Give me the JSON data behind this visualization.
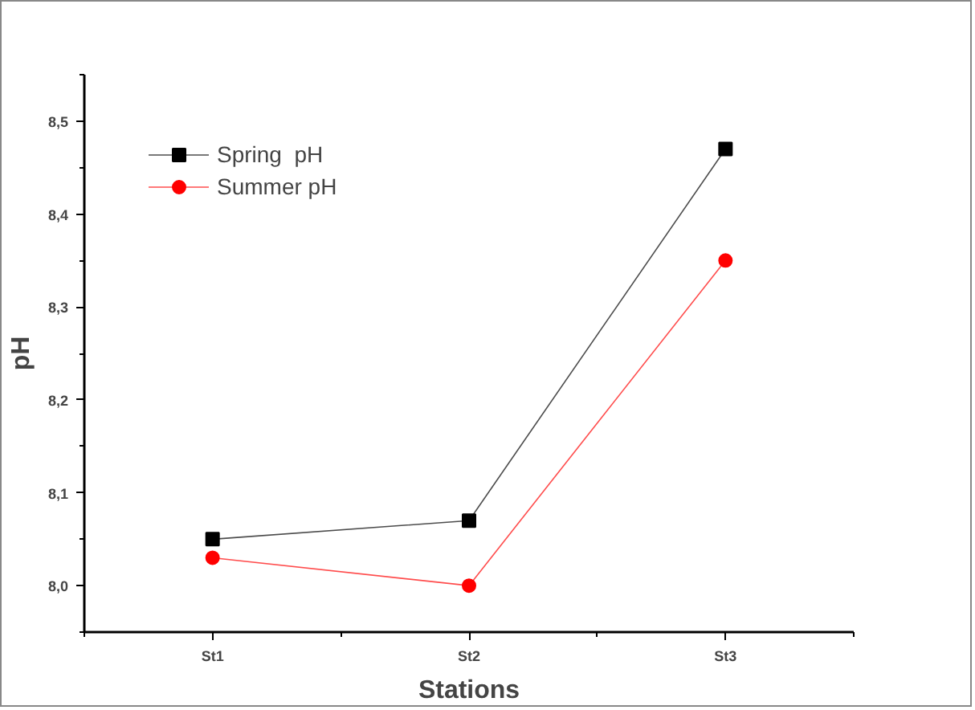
{
  "chart_data": {
    "type": "line",
    "xlabel": "Stations",
    "ylabel": "pH",
    "categories": [
      "St1",
      "St2",
      "St3"
    ],
    "series": [
      {
        "name": "Spring  pH",
        "color": "#000000",
        "marker": "square",
        "values": [
          8.05,
          8.07,
          8.47
        ]
      },
      {
        "name": "Summer pH",
        "color": "#ff0000",
        "marker": "circle",
        "values": [
          8.03,
          8.0,
          8.35
        ]
      }
    ],
    "ylim": [
      7.95,
      8.55
    ],
    "yticks": [
      {
        "value": 8.0,
        "label": "8,0"
      },
      {
        "value": 8.1,
        "label": "8,1"
      },
      {
        "value": 8.2,
        "label": "8,2"
      },
      {
        "value": 8.3,
        "label": "8,3"
      },
      {
        "value": 8.4,
        "label": "8,4"
      },
      {
        "value": 8.5,
        "label": "8,5"
      }
    ],
    "grid": false,
    "legend": "top left",
    "line_style": "solid"
  }
}
